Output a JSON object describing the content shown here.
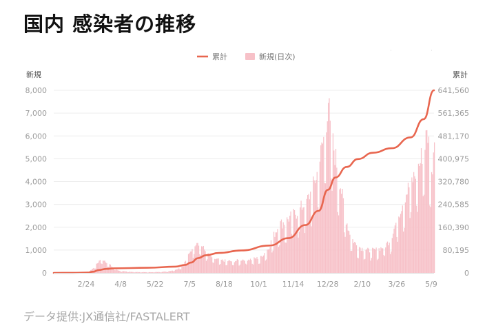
{
  "title": "国内 感染者の推移",
  "source": "データ提供:JX通信社/FASTALERT",
  "colors": {
    "cumulative_line": "#e8664f",
    "daily_bars": "#f7c1c8",
    "grid": "#ececec",
    "tick_text": "#9a9a9a",
    "legend_text": "#777777"
  },
  "chart_data": {
    "type": "bar",
    "combo": "bar+line",
    "legend_position": "top-center",
    "grid": true,
    "x_tick_labels": [
      "2/24",
      "4/8",
      "5/22",
      "7/5",
      "8/18",
      "10/1",
      "11/14",
      "12/28",
      "2/10",
      "3/26",
      "5/9"
    ],
    "left_axis": {
      "label": "新規",
      "ylim": [
        0,
        8000
      ],
      "ticks": [
        "8,000",
        "7,000",
        "6,000",
        "5,000",
        "4,000",
        "3,000",
        "2,000",
        "1,000",
        "0"
      ]
    },
    "right_axis": {
      "label": "累計",
      "ylim": [
        0,
        641560
      ],
      "ticks": [
        "641,560",
        "561,365",
        "481,170",
        "400,975",
        "320,780",
        "240,585",
        "160,390",
        "80,195",
        "0"
      ]
    },
    "series": [
      {
        "name": "新規(日次)",
        "type": "bar",
        "axis": "left",
        "shape_points": [
          [
            0,
            0
          ],
          [
            10,
            0
          ],
          [
            20,
            5
          ],
          [
            30,
            10
          ],
          [
            36,
            30
          ],
          [
            40,
            150
          ],
          [
            45,
            380
          ],
          [
            50,
            650
          ],
          [
            54,
            560
          ],
          [
            58,
            420
          ],
          [
            62,
            260
          ],
          [
            66,
            150
          ],
          [
            70,
            90
          ],
          [
            76,
            60
          ],
          [
            85,
            40
          ],
          [
            100,
            30
          ],
          [
            112,
            40
          ],
          [
            120,
            60
          ],
          [
            126,
            110
          ],
          [
            132,
            190
          ],
          [
            138,
            400
          ],
          [
            144,
            850
          ],
          [
            148,
            1200
          ],
          [
            152,
            1450
          ],
          [
            156,
            1300
          ],
          [
            160,
            1050
          ],
          [
            166,
            760
          ],
          [
            172,
            620
          ],
          [
            180,
            560
          ],
          [
            190,
            520
          ],
          [
            200,
            600
          ],
          [
            210,
            620
          ],
          [
            220,
            700
          ],
          [
            228,
            1100
          ],
          [
            234,
            1700
          ],
          [
            240,
            2200
          ],
          [
            246,
            2300
          ],
          [
            252,
            2550
          ],
          [
            258,
            2700
          ],
          [
            264,
            3000
          ],
          [
            270,
            3300
          ],
          [
            275,
            3800
          ],
          [
            280,
            4500
          ],
          [
            286,
            5800
          ],
          [
            290,
            7000
          ],
          [
            292,
            7900
          ],
          [
            294,
            6500
          ],
          [
            298,
            5600
          ],
          [
            302,
            4700
          ],
          [
            306,
            3700
          ],
          [
            310,
            2600
          ],
          [
            314,
            1900
          ],
          [
            318,
            1500
          ],
          [
            322,
            1250
          ],
          [
            328,
            1100
          ],
          [
            336,
            1000
          ],
          [
            344,
            1050
          ],
          [
            352,
            1200
          ],
          [
            358,
            1500
          ],
          [
            362,
            2000
          ],
          [
            366,
            2500
          ],
          [
            372,
            3300
          ],
          [
            378,
            3900
          ],
          [
            384,
            4400
          ],
          [
            390,
            5000
          ],
          [
            394,
            5800
          ],
          [
            398,
            6300
          ],
          [
            400,
            5400
          ],
          [
            402,
            4300
          ],
          [
            405,
            6200
          ]
        ],
        "approx_mark_count": 405
      },
      {
        "name": "累計",
        "type": "line",
        "axis": "right",
        "points": [
          [
            0,
            0
          ],
          [
            20,
            200
          ],
          [
            36,
            1000
          ],
          [
            42,
            4000
          ],
          [
            48,
            10000
          ],
          [
            56,
            14000
          ],
          [
            64,
            16000
          ],
          [
            100,
            18000
          ],
          [
            130,
            22000
          ],
          [
            140,
            28000
          ],
          [
            146,
            36000
          ],
          [
            154,
            52000
          ],
          [
            162,
            62000
          ],
          [
            176,
            70000
          ],
          [
            200,
            79000
          ],
          [
            230,
            96000
          ],
          [
            250,
            122000
          ],
          [
            268,
            168000
          ],
          [
            282,
            218000
          ],
          [
            292,
            292000
          ],
          [
            300,
            335000
          ],
          [
            312,
            372000
          ],
          [
            324,
            400000
          ],
          [
            340,
            422000
          ],
          [
            360,
            438000
          ],
          [
            380,
            476000
          ],
          [
            394,
            540000
          ],
          [
            405,
            641560
          ]
        ]
      }
    ]
  }
}
